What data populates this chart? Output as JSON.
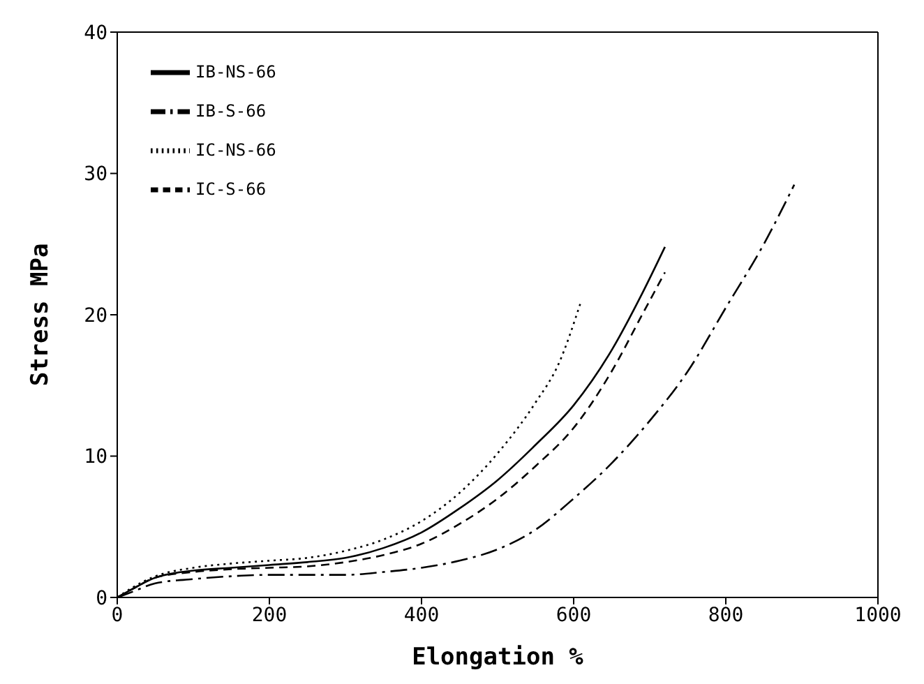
{
  "chart_data": {
    "type": "line",
    "xlabel": "Elongation %",
    "ylabel": "Stress  MPa",
    "xlim": [
      0,
      1000
    ],
    "xticks": [
      0,
      200,
      400,
      600,
      800,
      1000
    ],
    "ylim": [
      0,
      40
    ],
    "yticks": [
      0,
      10,
      20,
      30,
      40
    ],
    "grid": false,
    "legend": "top left",
    "marker": "none",
    "series": [
      {
        "name": "IB-NS-66",
        "color": "#000000",
        "line_style": "solid",
        "x": [
          0,
          20,
          50,
          100,
          150,
          200,
          250,
          300,
          350,
          400,
          450,
          500,
          550,
          600,
          650,
          690,
          720
        ],
        "values": [
          0,
          0.6,
          1.4,
          1.9,
          2.1,
          2.3,
          2.5,
          2.8,
          3.5,
          4.6,
          6.3,
          8.3,
          10.8,
          13.6,
          17.5,
          21.5,
          24.8
        ]
      },
      {
        "name": "IB-S-66",
        "color": "#000000",
        "line_style": "dashdot",
        "x": [
          0,
          20,
          50,
          100,
          150,
          200,
          250,
          300,
          350,
          400,
          450,
          500,
          550,
          600,
          650,
          700,
          750,
          800,
          850,
          890
        ],
        "values": [
          0,
          0.4,
          1.0,
          1.3,
          1.5,
          1.6,
          1.6,
          1.6,
          1.8,
          2.1,
          2.6,
          3.4,
          4.8,
          7.0,
          9.5,
          12.5,
          16,
          20.5,
          25,
          29.2
        ]
      },
      {
        "name": "IC-NS-66",
        "color": "#000000",
        "line_style": "dotted",
        "x": [
          0,
          20,
          50,
          100,
          150,
          200,
          250,
          300,
          350,
          400,
          450,
          500,
          550,
          580,
          610
        ],
        "values": [
          0,
          0.7,
          1.5,
          2.1,
          2.4,
          2.6,
          2.8,
          3.3,
          4.1,
          5.4,
          7.4,
          10.2,
          13.8,
          16.5,
          21
        ]
      },
      {
        "name": "IC-S-66",
        "color": "#000000",
        "line_style": "dashed",
        "x": [
          0,
          20,
          50,
          100,
          150,
          200,
          250,
          300,
          350,
          400,
          450,
          500,
          550,
          600,
          650,
          690,
          720
        ],
        "values": [
          0,
          0.6,
          1.4,
          1.8,
          2.0,
          2.1,
          2.2,
          2.5,
          3.0,
          3.8,
          5.2,
          7.0,
          9.3,
          12.0,
          16,
          20,
          23
        ]
      }
    ]
  }
}
